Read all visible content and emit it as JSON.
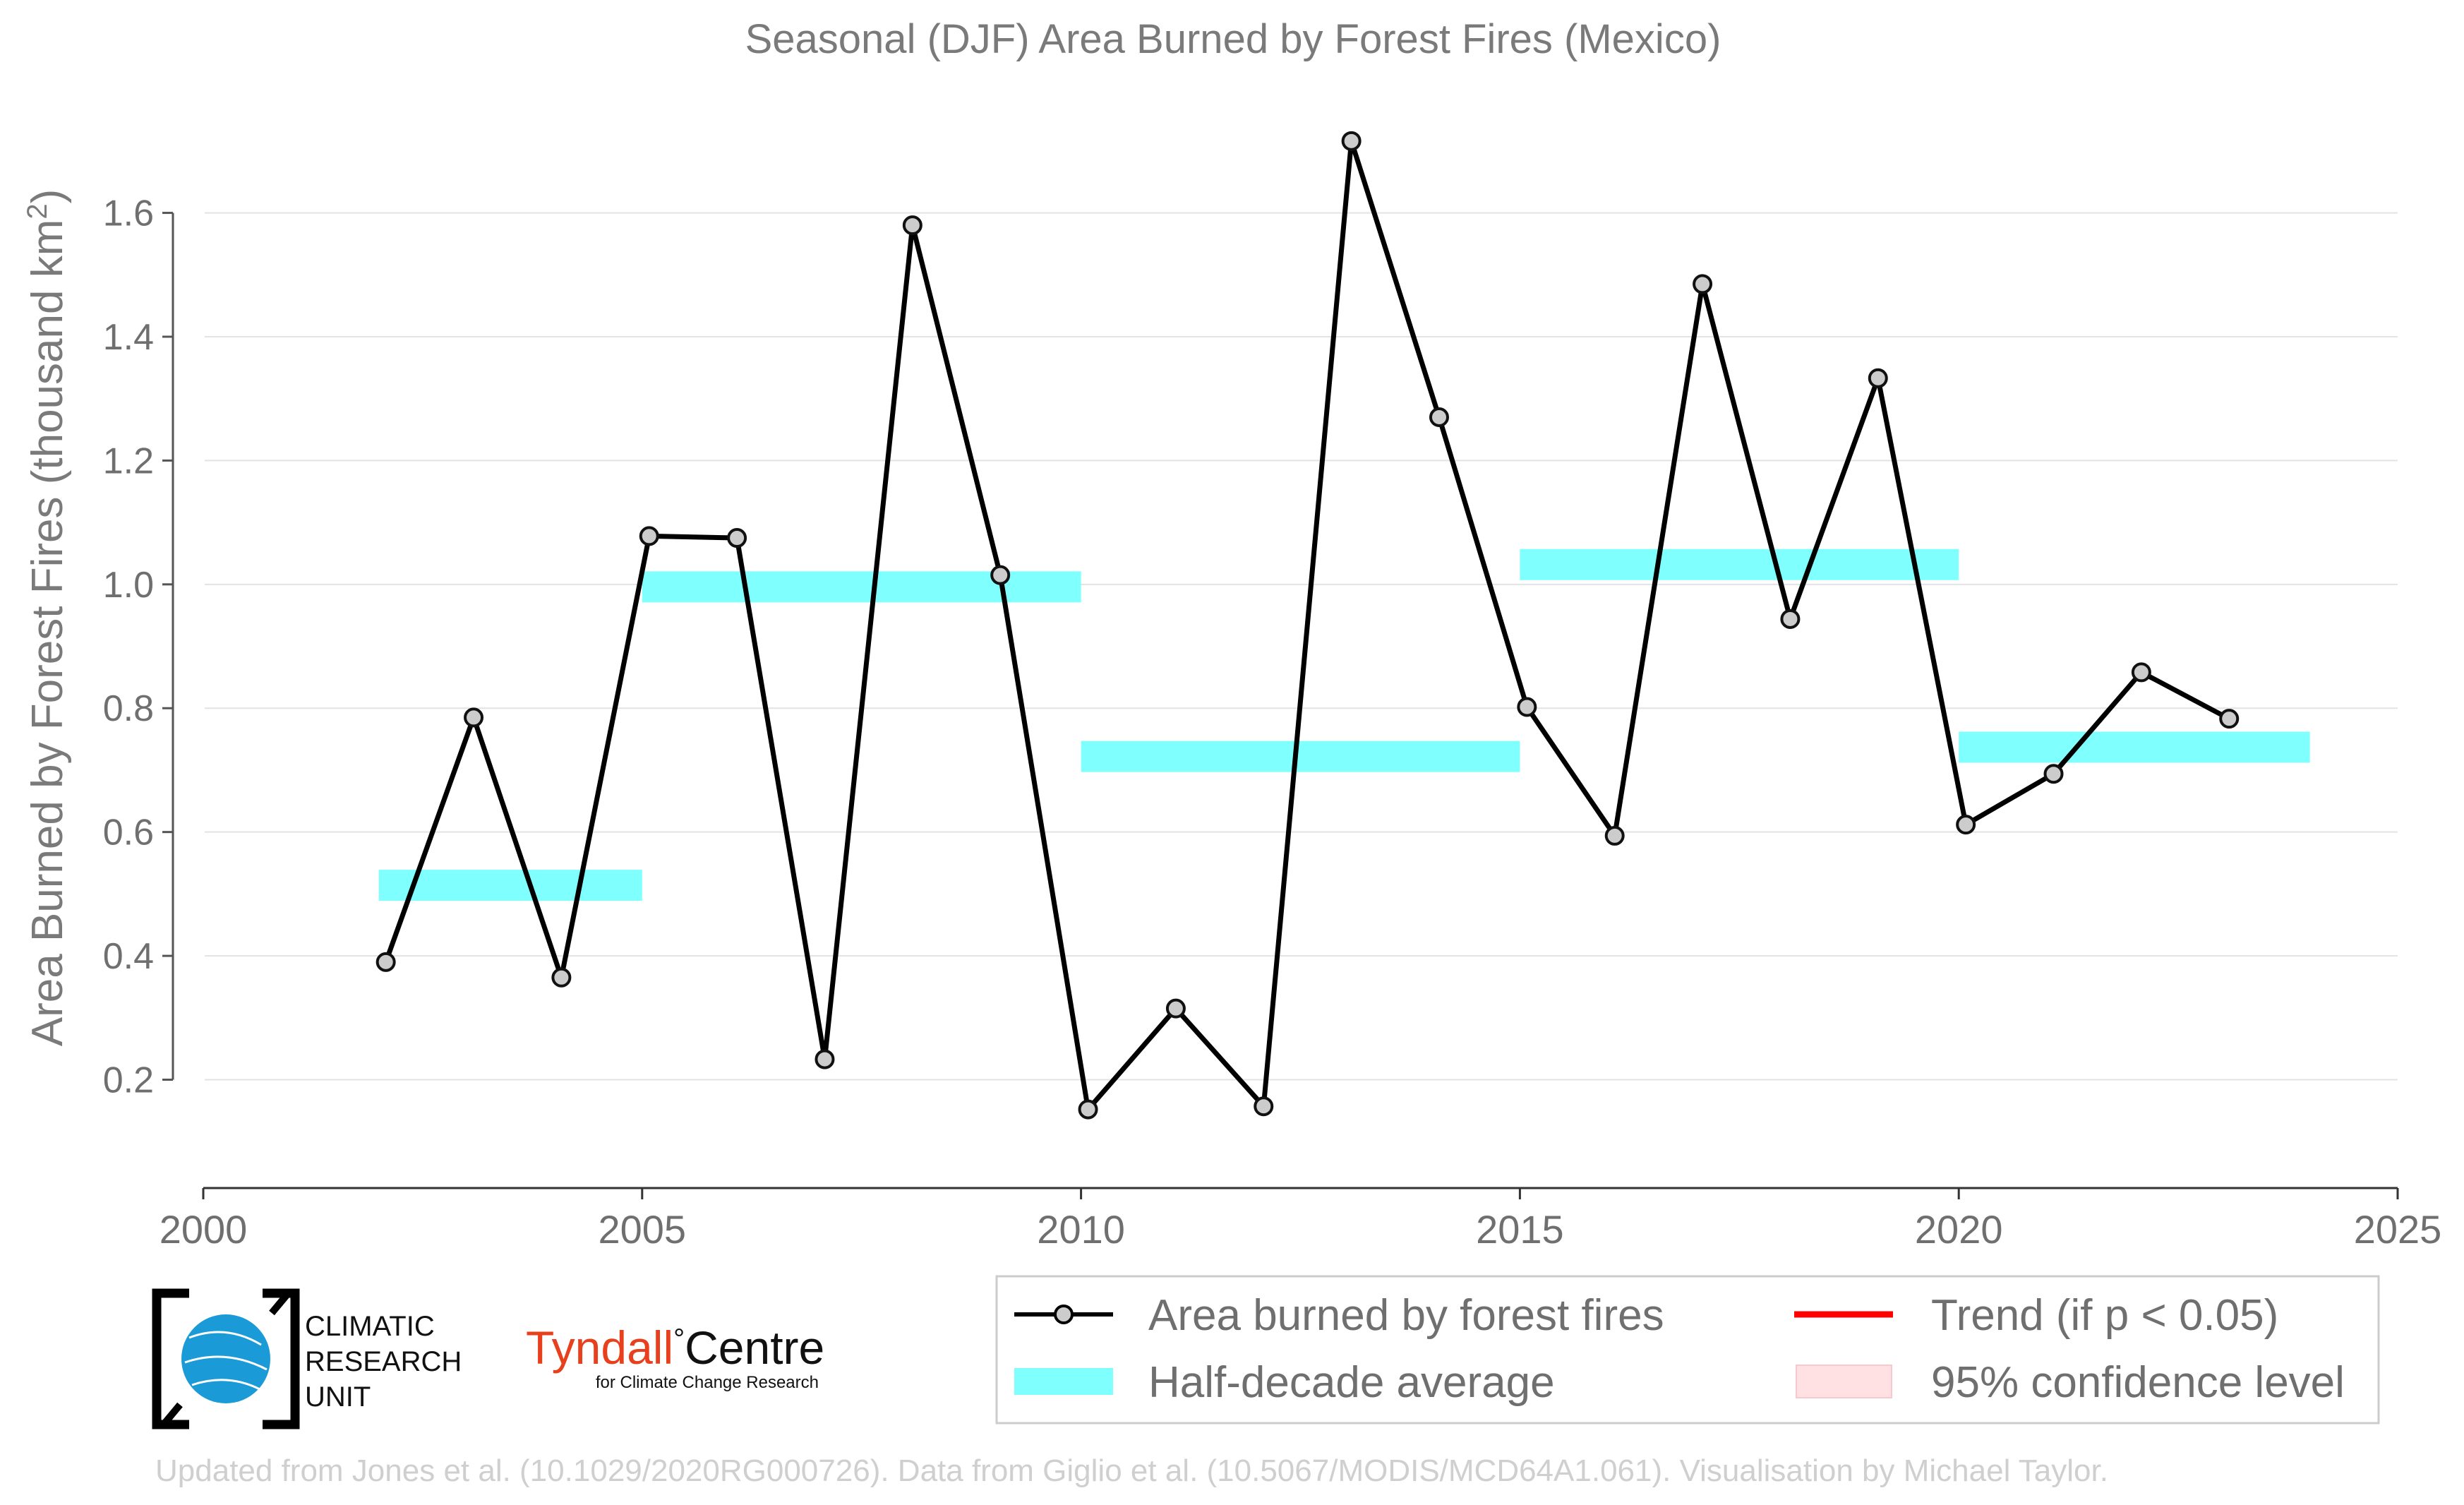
{
  "chart_data": {
    "type": "line",
    "title": "Seasonal (DJF) Area Burned by Forest Fires (Mexico)",
    "ylabel": "Area Burned by Forest Fires (thousand km",
    "ylabel_superscript": "2",
    "ylabel_close": ")",
    "xlabel": "",
    "xlim": [
      2000,
      2025
    ],
    "ylim": [
      0.025,
      1.75
    ],
    "x_ticks": [
      "2000",
      "2005",
      "2010",
      "2015",
      "2020",
      "2025"
    ],
    "y_ticks": [
      "0.2",
      "0.4",
      "0.6",
      "0.8",
      "1.0",
      "1.2",
      "1.4",
      "1.6"
    ],
    "grid": "horizontal",
    "legend_position": "bottom-right",
    "series": [
      {
        "name": "Area burned by forest fires",
        "color": "#000000",
        "x": [
          2002,
          2003,
          2004,
          2005,
          2006,
          2007,
          2008,
          2009,
          2010,
          2011,
          2012,
          2013,
          2014,
          2015,
          2016,
          2017,
          2018,
          2019,
          2020,
          2021,
          2022,
          2023
        ],
        "y": [
          0.39,
          0.785,
          0.365,
          1.078,
          1.075,
          0.233,
          1.58,
          1.015,
          0.152,
          0.315,
          0.157,
          1.716,
          1.27,
          0.802,
          0.594,
          1.485,
          0.944,
          1.333,
          0.612,
          0.694,
          0.858,
          0.783
        ]
      }
    ],
    "half_decade_averages": {
      "name": "Half-decade average",
      "color": "#80ffff",
      "segments": [
        {
          "x0": 2002,
          "x1": 2005,
          "y": 0.514
        },
        {
          "x0": 2005,
          "x1": 2010,
          "y": 0.996
        },
        {
          "x0": 2010,
          "x1": 2015,
          "y": 0.722
        },
        {
          "x0": 2015,
          "x1": 2020,
          "y": 1.032
        },
        {
          "x0": 2020,
          "x1": 2024,
          "y": 0.737
        }
      ]
    },
    "legend": [
      {
        "label": "Area burned by forest fires",
        "kind": "line-marker",
        "color": "#000000"
      },
      {
        "label": "Trend (if p < 0.05)",
        "kind": "line",
        "color": "#ff0000"
      },
      {
        "label": "Half-decade average",
        "kind": "band",
        "color": "#80ffff"
      },
      {
        "label": "95% confidence level",
        "kind": "patch",
        "color": "#ffe0e3"
      }
    ]
  },
  "logos": {
    "cru_lines": [
      "CLIMATIC",
      "RESEARCH",
      "UNIT"
    ],
    "tyndall_main_left": "Tyndall",
    "tyndall_degree": "°",
    "tyndall_main_right": "Centre",
    "tyndall_sub": "for Climate Change Research",
    "tyndall_color": "#e8401c",
    "cru_globe_color": "#1a9ad6"
  },
  "credit": "Updated from Jones et al. (10.1029/2020RG000726). Data from Giglio et al. (10.5067/MODIS/MCD64A1.061). Visualisation by Michael Taylor."
}
